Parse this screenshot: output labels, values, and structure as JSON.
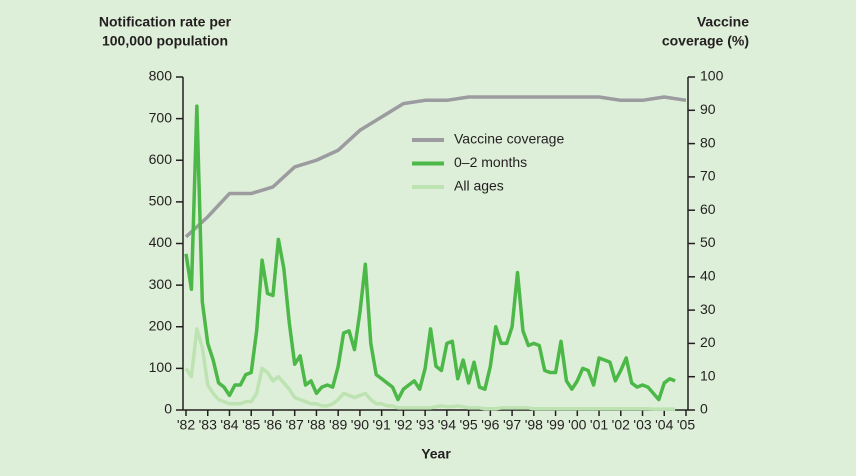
{
  "chart_data": {
    "type": "line",
    "ylabel": [
      "Notification rate per",
      "100,000 population"
    ],
    "y2label": [
      "Vaccine",
      "coverage (%)"
    ],
    "xlabel": "Year",
    "xlim": [
      1982,
      2005
    ],
    "xticks": [
      {
        "value": 1982,
        "label": "'82"
      },
      {
        "value": 1983,
        "label": "'83"
      },
      {
        "value": 1984,
        "label": "'84"
      },
      {
        "value": 1985,
        "label": "'85"
      },
      {
        "value": 1986,
        "label": "'86"
      },
      {
        "value": 1987,
        "label": "'87"
      },
      {
        "value": 1988,
        "label": "'88"
      },
      {
        "value": 1989,
        "label": "'89"
      },
      {
        "value": 1990,
        "label": "'90"
      },
      {
        "value": 1991,
        "label": "'91"
      },
      {
        "value": 1992,
        "label": "'92"
      },
      {
        "value": 1993,
        "label": "'93"
      },
      {
        "value": 1994,
        "label": "'94"
      },
      {
        "value": 1995,
        "label": "'95"
      },
      {
        "value": 1996,
        "label": "'96"
      },
      {
        "value": 1997,
        "label": "'97"
      },
      {
        "value": 1998,
        "label": "'98"
      },
      {
        "value": 1999,
        "label": "'99"
      },
      {
        "value": 2000,
        "label": "'00"
      },
      {
        "value": 2001,
        "label": "'01"
      },
      {
        "value": 2002,
        "label": "'02"
      },
      {
        "value": 2003,
        "label": "'03"
      },
      {
        "value": 2004,
        "label": "'04"
      },
      {
        "value": 2005,
        "label": "'05"
      }
    ],
    "ylim": [
      0,
      800
    ],
    "yticks": [
      0,
      100,
      200,
      300,
      400,
      500,
      600,
      700,
      800
    ],
    "y2lim": [
      0,
      100
    ],
    "y2ticks": [
      0,
      10,
      20,
      30,
      40,
      50,
      60,
      70,
      80,
      90,
      100
    ],
    "series": [
      {
        "name": "Vaccine coverage",
        "color": "#9b9ba0",
        "axis": "y2",
        "x": [
          1982,
          1983,
          1984,
          1985,
          1986,
          1987,
          1988,
          1989,
          1990,
          1991,
          1992,
          1993,
          1994,
          1995,
          1996,
          1997,
          1998,
          1999,
          2000,
          2001,
          2002,
          2003,
          2004,
          2005
        ],
        "values": [
          52,
          58,
          65,
          65,
          67,
          73,
          75,
          78,
          84,
          88,
          92,
          93,
          93,
          94,
          94,
          94,
          94,
          94,
          94,
          94,
          93,
          93,
          94,
          93
        ]
      },
      {
        "name": "0–2 months",
        "color": "#4cb848",
        "x": [
          1982,
          1982.25,
          1982.5,
          1982.75,
          1983,
          1983.25,
          1983.5,
          1983.75,
          1984,
          1984.25,
          1984.5,
          1984.75,
          1985,
          1985.25,
          1985.5,
          1985.75,
          1986,
          1986.25,
          1986.5,
          1986.75,
          1987,
          1987.25,
          1987.5,
          1987.75,
          1988,
          1988.25,
          1988.5,
          1988.75,
          1989,
          1989.25,
          1989.5,
          1989.75,
          1990,
          1990.25,
          1990.5,
          1990.75,
          1991,
          1991.25,
          1991.5,
          1991.75,
          1992,
          1992.25,
          1992.5,
          1992.75,
          1993,
          1993.25,
          1993.5,
          1993.75,
          1994,
          1994.25,
          1994.5,
          1994.75,
          1995,
          1995.25,
          1995.5,
          1995.75,
          1996,
          1996.25,
          1996.5,
          1996.75,
          1997,
          1997.25,
          1997.5,
          1997.75,
          1998,
          1998.25,
          1998.5,
          1998.75,
          1999,
          1999.25,
          1999.5,
          1999.75,
          2000,
          2000.25,
          2000.5,
          2000.75,
          2001,
          2001.25,
          2001.5,
          2001.75,
          2002,
          2002.25,
          2002.5,
          2002.75,
          2003,
          2003.25,
          2003.5,
          2003.75,
          2004,
          2004.25,
          2004.5
        ],
        "values": [
          375,
          290,
          730,
          260,
          160,
          120,
          65,
          55,
          35,
          60,
          60,
          85,
          90,
          190,
          360,
          280,
          275,
          410,
          340,
          210,
          110,
          130,
          60,
          70,
          40,
          55,
          60,
          55,
          105,
          185,
          190,
          145,
          235,
          350,
          160,
          85,
          75,
          65,
          55,
          25,
          50,
          60,
          70,
          50,
          100,
          195,
          105,
          95,
          160,
          165,
          75,
          120,
          65,
          115,
          55,
          50,
          105,
          200,
          160,
          160,
          200,
          330,
          190,
          155,
          160,
          155,
          95,
          90,
          90,
          165,
          70,
          50,
          70,
          100,
          95,
          60,
          125,
          120,
          115,
          70,
          95,
          125,
          65,
          55,
          60,
          55,
          40,
          25,
          65,
          75,
          70
        ]
      },
      {
        "name": "All ages",
        "color": "#bde3b2",
        "x": [
          1982,
          1982.25,
          1982.5,
          1982.75,
          1983,
          1983.25,
          1983.5,
          1983.75,
          1984,
          1984.25,
          1984.5,
          1984.75,
          1985,
          1985.25,
          1985.5,
          1985.75,
          1986,
          1986.25,
          1986.5,
          1986.75,
          1987,
          1987.25,
          1987.5,
          1987.75,
          1988,
          1988.25,
          1988.5,
          1988.75,
          1989,
          1989.25,
          1989.5,
          1989.75,
          1990,
          1990.25,
          1990.5,
          1990.75,
          1991,
          1991.25,
          1991.5,
          1991.75,
          1992,
          1992.25,
          1992.5,
          1992.75,
          1993,
          1993.25,
          1993.5,
          1993.75,
          1994,
          1994.25,
          1994.5,
          1994.75,
          1995,
          1995.25,
          1995.5,
          1995.75,
          1996,
          1996.25,
          1996.5,
          1996.75,
          1997,
          1997.25,
          1997.5,
          1997.75,
          1998,
          1998.25,
          1998.5,
          1998.75,
          1999,
          1999.25,
          1999.5,
          1999.75,
          2000,
          2000.25,
          2000.5,
          2000.75,
          2001,
          2001.25,
          2001.5,
          2001.75,
          2002,
          2002.25,
          2002.5,
          2002.75,
          2003,
          2003.25,
          2003.5,
          2003.75,
          2004,
          2004.25,
          2004.5
        ],
        "values": [
          100,
          80,
          195,
          150,
          60,
          40,
          25,
          20,
          15,
          15,
          15,
          20,
          20,
          40,
          100,
          90,
          70,
          80,
          65,
          50,
          30,
          25,
          20,
          15,
          15,
          10,
          10,
          15,
          25,
          40,
          35,
          30,
          35,
          40,
          25,
          15,
          15,
          10,
          10,
          5,
          5,
          5,
          5,
          5,
          5,
          5,
          8,
          10,
          8,
          8,
          10,
          8,
          5,
          5,
          5,
          3,
          3,
          3,
          5,
          5,
          5,
          5,
          5,
          5,
          3,
          3,
          3,
          3,
          3,
          3,
          3,
          3,
          3,
          3,
          3,
          3,
          3,
          3,
          3,
          3,
          3,
          3,
          3,
          3,
          3,
          3,
          2,
          2,
          2,
          2,
          2
        ]
      }
    ]
  }
}
